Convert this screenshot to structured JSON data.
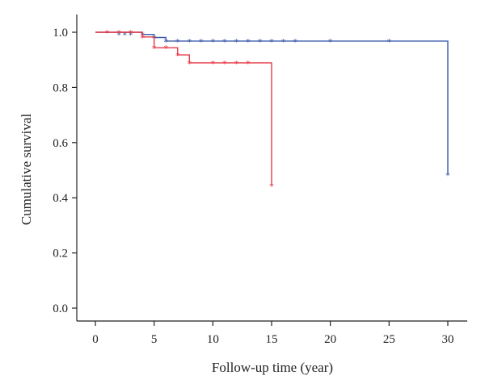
{
  "chart_data": {
    "type": "line",
    "title": "",
    "xlabel": "Follow-up time (year)",
    "ylabel": "Cumulative survival",
    "xlim": [
      0,
      30
    ],
    "ylim": [
      0,
      1
    ],
    "xticks": [
      "0",
      "5",
      "10",
      "15",
      "20",
      "25",
      "30"
    ],
    "yticks": [
      "0.0",
      "0.2",
      "0.4",
      "0.6",
      "0.8",
      "1.0"
    ],
    "grid": false,
    "legend": "none",
    "censor_marker": "*",
    "series": [
      {
        "color": "#3a5ba8",
        "step_x": [
          0,
          4,
          5,
          6,
          30,
          30
        ],
        "step_y": [
          1.0,
          0.992,
          0.981,
          0.968,
          0.968,
          0.484
        ],
        "censored_x": [
          2,
          2.5,
          3,
          4,
          5,
          6,
          7,
          8,
          9,
          10,
          11,
          12,
          13,
          14,
          15,
          16,
          17,
          20,
          25,
          30
        ],
        "censored_y": [
          0.992,
          0.992,
          0.992,
          0.992,
          0.981,
          0.968,
          0.968,
          0.968,
          0.968,
          0.968,
          0.968,
          0.968,
          0.968,
          0.968,
          0.968,
          0.968,
          0.968,
          0.968,
          0.968,
          0.484
        ]
      },
      {
        "color": "#e63946",
        "step_x": [
          0,
          4,
          5,
          7,
          8,
          15,
          15
        ],
        "step_y": [
          1.0,
          0.983,
          0.944,
          0.918,
          0.889,
          0.889,
          0.444
        ],
        "censored_x": [
          1,
          2,
          3,
          4,
          5,
          6,
          7,
          8,
          10,
          11,
          12,
          13,
          15
        ],
        "censored_y": [
          1.0,
          1.0,
          1.0,
          0.983,
          0.944,
          0.944,
          0.918,
          0.889,
          0.889,
          0.889,
          0.889,
          0.889,
          0.444
        ]
      }
    ]
  }
}
